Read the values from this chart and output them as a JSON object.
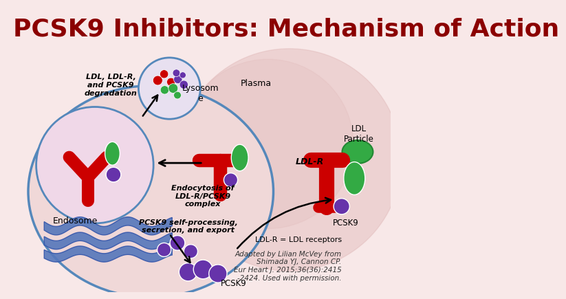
{
  "title": "PCSK9 Inhibitors: Mechanism of Action",
  "title_color": "#8B0000",
  "title_fontsize": 26,
  "bg_color": "#f8e8e8",
  "cell_outline": "#5588bb",
  "lysosome_label": "Lysosom\ne",
  "endosome_label": "Endosome",
  "ldl_ldlr_label": "LDL, LDL-R,\nand PCSK9\ndegradation",
  "ldl_r_label": "LDL-R",
  "ldl_particle_label": "LDL\nParticle",
  "plasma_label": "Plasma",
  "endocytosis_label": "Endocytosis of\nLDL-R/PCSK9\ncomplex",
  "pcsk9_self_label": "PCSK9 self-processing,\nsecretion, and export",
  "pcsk9_label": "PCSK9",
  "ldlr_eq_label": "LDL-R = LDL receptors",
  "citation": "Adapted by Lilian McVey from\nShimada YJ, Cannon CP.\nEur Heart J. 2015;36(36):2415\n-2424. Used with permission.",
  "red": "#cc0000",
  "green": "#33aa44",
  "purple": "#6633aa",
  "blue_er": "#5577bb",
  "cell_fill": "#f0d8d8",
  "endosome_fill": "#ecdcec",
  "lyso_fill": "#e8e0f0",
  "heart_color": "#e0b8b8"
}
